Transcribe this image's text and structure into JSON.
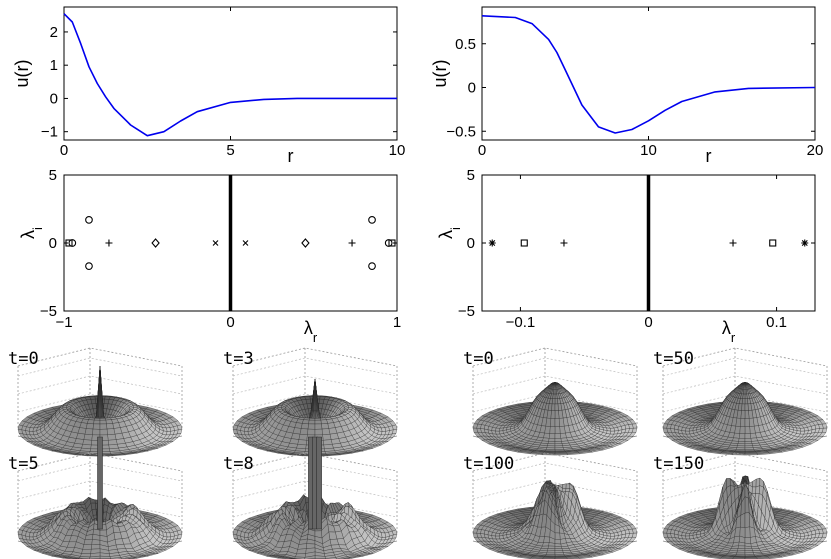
{
  "chart_data": [
    {
      "type": "line",
      "panel": "top-left",
      "xlabel": "r",
      "ylabel": "u(r)",
      "xlim": [
        0,
        10
      ],
      "ylim": [
        -1.25,
        2.75
      ],
      "xticks": [
        0,
        5,
        10
      ],
      "yticks": [
        -1,
        0,
        1,
        2
      ],
      "color": "#0000ee",
      "x": [
        0,
        0.25,
        0.5,
        0.75,
        1,
        1.25,
        1.5,
        2,
        2.5,
        3,
        3.5,
        4,
        5,
        6,
        7,
        10
      ],
      "y": [
        2.55,
        2.3,
        1.65,
        0.95,
        0.45,
        0.05,
        -0.3,
        -0.8,
        -1.12,
        -1.0,
        -0.68,
        -0.4,
        -0.12,
        -0.03,
        0,
        0
      ]
    },
    {
      "type": "line",
      "panel": "top-right",
      "xlabel": "r",
      "ylabel": "u(r)",
      "xlim": [
        0,
        20
      ],
      "ylim": [
        -0.6,
        0.92
      ],
      "xticks": [
        0,
        10,
        20
      ],
      "yticks": [
        -0.5,
        0,
        0.5
      ],
      "color": "#0000ee",
      "x": [
        0,
        2,
        3,
        4,
        4.5,
        5,
        5.5,
        6,
        7,
        8,
        9,
        10,
        11,
        12,
        14,
        16,
        20
      ],
      "y": [
        0.82,
        0.8,
        0.73,
        0.55,
        0.4,
        0.2,
        0.0,
        -0.2,
        -0.45,
        -0.52,
        -0.48,
        -0.38,
        -0.26,
        -0.16,
        -0.05,
        -0.01,
        0
      ]
    },
    {
      "type": "scatter",
      "panel": "middle-left",
      "xlabel": "λ_r",
      "ylabel": "λ_i",
      "xlim": [
        -1,
        1
      ],
      "ylim": [
        -5,
        5
      ],
      "xticks": [
        -1,
        0,
        1
      ],
      "yticks": [
        -5,
        0,
        5
      ],
      "continuous_spectrum": {
        "x": 0,
        "y": [
          -5,
          5
        ]
      },
      "series": [
        {
          "marker": "square",
          "points": [
            [
              -0.97,
              0
            ],
            [
              0.97,
              0
            ]
          ]
        },
        {
          "marker": "circle",
          "points": [
            [
              -0.95,
              0
            ],
            [
              0.95,
              0
            ],
            [
              -0.85,
              1.7
            ],
            [
              -0.85,
              -1.7
            ],
            [
              0.85,
              1.7
            ],
            [
              0.85,
              -1.7
            ]
          ]
        },
        {
          "marker": "plus",
          "points": [
            [
              -0.73,
              0
            ],
            [
              0.73,
              0
            ]
          ]
        },
        {
          "marker": "diamond",
          "points": [
            [
              -0.45,
              0
            ],
            [
              0.45,
              0
            ]
          ]
        },
        {
          "marker": "cross",
          "points": [
            [
              -0.09,
              0
            ],
            [
              0.09,
              0
            ]
          ]
        }
      ]
    },
    {
      "type": "scatter",
      "panel": "middle-right",
      "xlabel": "λ_r",
      "ylabel": "λ_i",
      "xlim": [
        -0.13,
        0.13
      ],
      "ylim": [
        -5,
        5
      ],
      "xticks": [
        -0.1,
        0,
        0.1
      ],
      "yticks": [
        -5,
        0,
        5
      ],
      "continuous_spectrum": {
        "x": 0,
        "y": [
          -5,
          5
        ]
      },
      "series": [
        {
          "marker": "star",
          "points": [
            [
              -0.122,
              0
            ],
            [
              0.122,
              0
            ]
          ]
        },
        {
          "marker": "square",
          "points": [
            [
              -0.097,
              0
            ],
            [
              0.097,
              0
            ]
          ]
        },
        {
          "marker": "plus",
          "points": [
            [
              -0.066,
              0
            ],
            [
              0.066,
              0
            ]
          ]
        }
      ]
    },
    {
      "type": "surface",
      "panel": "bottom-left",
      "snapshots": [
        {
          "label": "t=0",
          "core_height": 0.95,
          "core_width": 0.035,
          "jitter": 0,
          "spikes": []
        },
        {
          "label": "t=3",
          "core_height": 0.75,
          "core_width": 0.045,
          "jitter": 0,
          "spikes": []
        },
        {
          "label": "t=5",
          "core_height": 1.1,
          "core_width": 0.02,
          "jitter": 0.12,
          "spikes": [
            0.0
          ]
        },
        {
          "label": "t=8",
          "core_height": 1.2,
          "core_width": 0.02,
          "jitter": 0.2,
          "spikes": [
            -0.05,
            0.0,
            0.05
          ]
        }
      ]
    },
    {
      "type": "surface",
      "panel": "bottom-right",
      "snapshots": [
        {
          "label": "t=0",
          "lobes": 0,
          "jitter": 0
        },
        {
          "label": "t=50",
          "lobes": 0,
          "jitter": 0
        },
        {
          "label": "t=100",
          "lobes": 3,
          "jitter": 0.25
        },
        {
          "label": "t=150",
          "lobes": 4,
          "jitter": 0.35
        }
      ]
    }
  ]
}
